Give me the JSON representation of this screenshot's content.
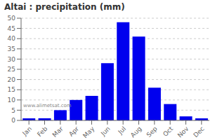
{
  "chart_data": {
    "type": "bar",
    "title": "Altai : precipitation (mm)",
    "categories": [
      "Jan",
      "Feb",
      "Mar",
      "Apr",
      "May",
      "Jun",
      "Jul",
      "Aug",
      "Sep",
      "Oct",
      "Nov",
      "Dec"
    ],
    "values": [
      1,
      1,
      5,
      10,
      12,
      28,
      48,
      41,
      16,
      8,
      2,
      1
    ],
    "color": "#0000EE",
    "ylim": [
      0,
      50
    ],
    "yticks": [
      0,
      5,
      10,
      15,
      20,
      25,
      30,
      35,
      40,
      45,
      50
    ],
    "grid": true,
    "annotations": [
      "www.alimetsat.com"
    ]
  }
}
